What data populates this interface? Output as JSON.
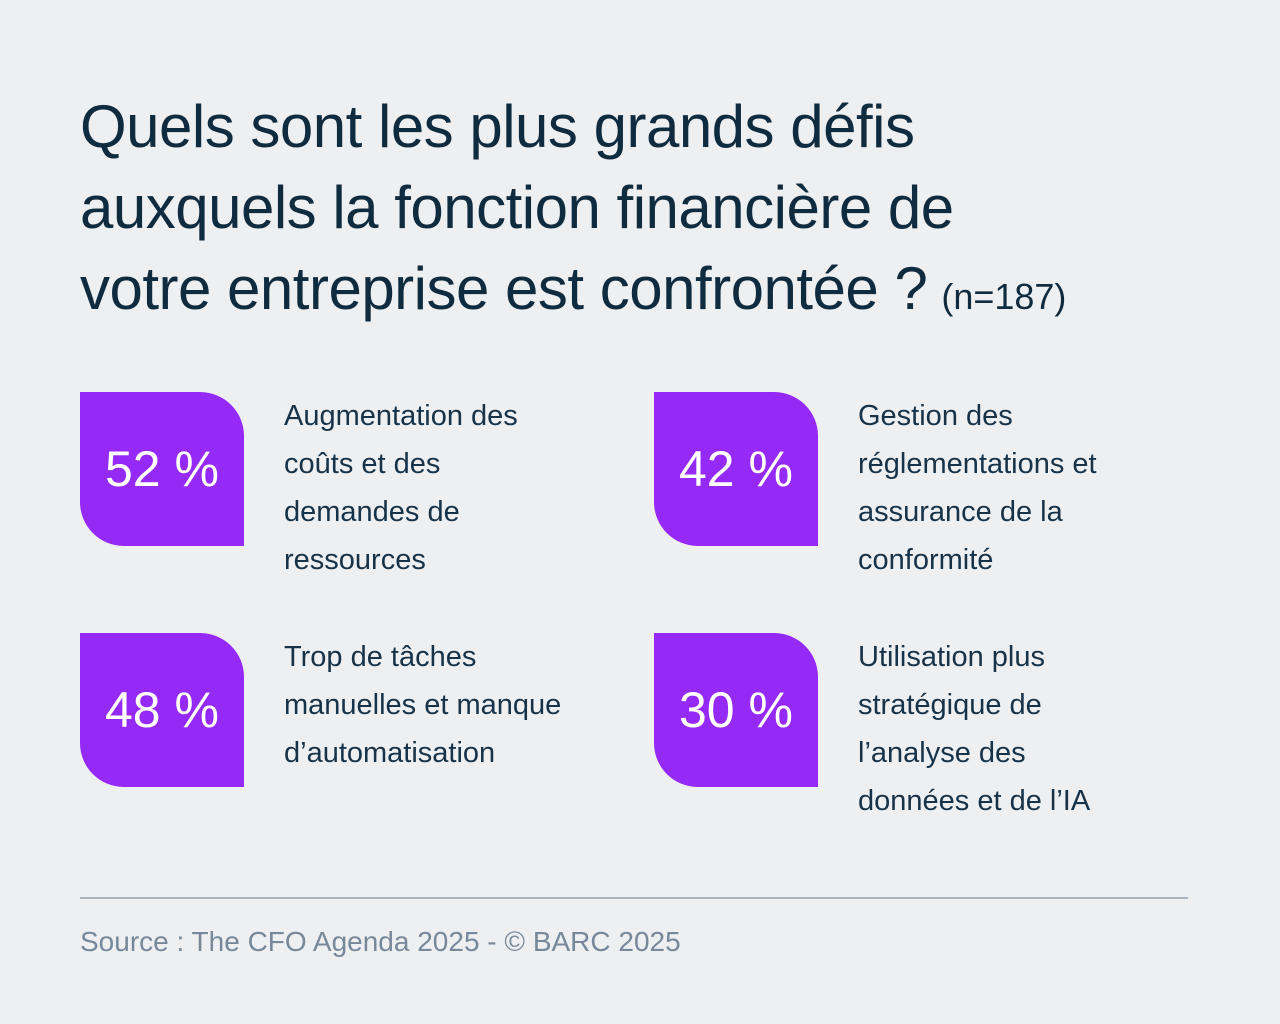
{
  "background_color": "#edeff1",
  "accent_color": "#9529f5",
  "title_color": "#0f2b40",
  "title": {
    "lines": [
      "Quels sont les plus grands défis",
      "auxquels la fonction financière de",
      "votre entreprise est confrontée ?"
    ],
    "sample": "(n=187)"
  },
  "stats": [
    {
      "value": "52 %",
      "label": "Augmentation des\ncoûts et des\ndemandes de\nressources"
    },
    {
      "value": "42 %",
      "label": "Gestion des\nréglementations et\nassurance de la\nconformité"
    },
    {
      "value": "48 %",
      "label": "Trop de tâches\nmanuelles et manque\nd’automatisation"
    },
    {
      "value": "30 %",
      "label": "Utilisation plus\nstratégique de\nl’analyse des\ndonnées et de l’IA"
    }
  ],
  "footer": {
    "source": "Source : The CFO Agenda 2025 - © BARC 2025"
  },
  "chart_data": {
    "type": "bar",
    "title": "Quels sont les plus grands défis auxquels la fonction financière de votre entreprise est confrontée ?",
    "sample_size_label": "(n=187)",
    "categories": [
      "Augmentation des coûts et des demandes de ressources",
      "Gestion des réglementations et assurance de la conformité",
      "Trop de tâches manuelles et manque d’automatisation",
      "Utilisation plus stratégique de l’analyse des données et de l’IA"
    ],
    "values": [
      52,
      42,
      48,
      30
    ],
    "unit": "%",
    "legend": false,
    "source": "Source : The CFO Agenda 2025 - © BARC 2025"
  }
}
